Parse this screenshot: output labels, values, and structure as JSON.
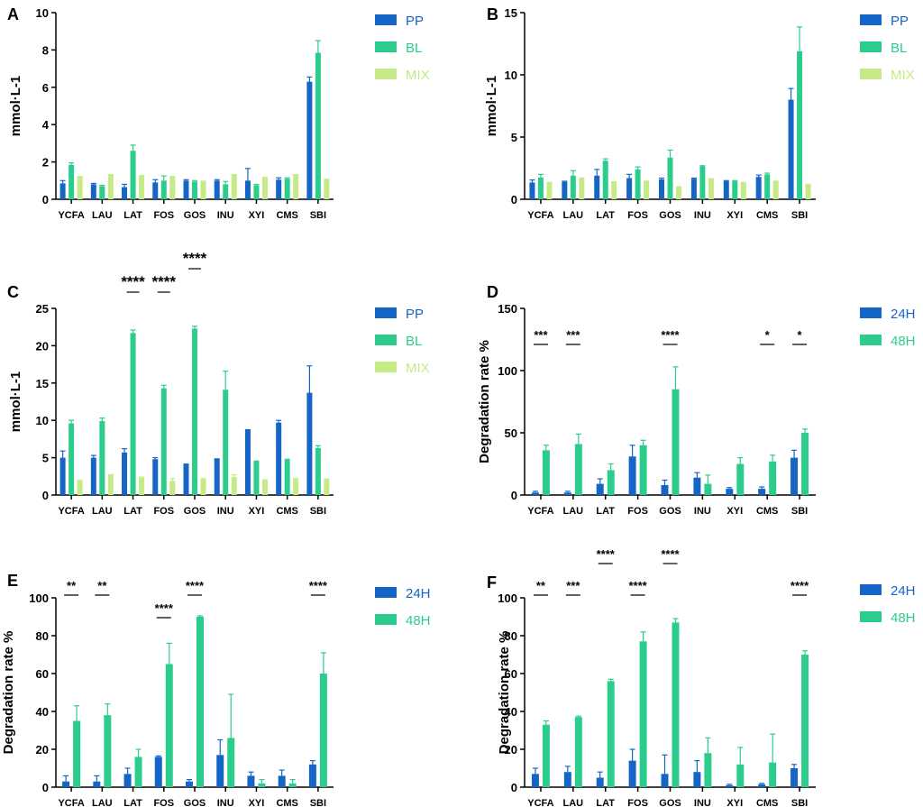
{
  "colors": {
    "PP": "#1565c7",
    "BL": "#2ccd8c",
    "MIX": "#c5ea86",
    "24H": "#1565c7",
    "48H": "#2ccd8c"
  },
  "chart_data": [
    {
      "panel": "A",
      "type": "bar",
      "ylabel": "mmol·L-1",
      "ylim": [
        0,
        10
      ],
      "yticks": [
        0,
        2,
        4,
        6,
        8,
        10
      ],
      "categories": [
        "YCFA",
        "LAU",
        "LAT",
        "FOS",
        "GOS",
        "INU",
        "XYI",
        "CMS",
        "SBI"
      ],
      "legend": [
        "PP",
        "BL",
        "MIX"
      ],
      "series": [
        {
          "name": "PP",
          "values": [
            0.85,
            0.8,
            0.65,
            0.9,
            1.0,
            1.0,
            1.0,
            1.05,
            6.3
          ],
          "errors": [
            0.15,
            0.05,
            0.15,
            0.15,
            0.05,
            0.05,
            0.65,
            0.1,
            0.25
          ]
        },
        {
          "name": "BL",
          "values": [
            1.85,
            0.7,
            2.6,
            1.0,
            0.95,
            0.8,
            0.75,
            1.1,
            7.85
          ],
          "errors": [
            0.1,
            0.05,
            0.3,
            0.25,
            0.05,
            0.15,
            0.05,
            0.05,
            0.65
          ]
        },
        {
          "name": "MIX",
          "values": [
            1.25,
            1.35,
            1.3,
            1.25,
            1.0,
            1.35,
            1.2,
            1.35,
            1.1
          ],
          "errors": [
            0,
            0,
            0,
            0,
            0,
            0,
            0,
            0,
            0
          ]
        }
      ],
      "significance": []
    },
    {
      "panel": "B",
      "type": "bar",
      "ylabel": "mmol·L-1",
      "ylim": [
        0,
        15
      ],
      "yticks": [
        0,
        5,
        10,
        15
      ],
      "categories": [
        "YCFA",
        "LAU",
        "LAT",
        "FOS",
        "GOS",
        "INU",
        "XYI",
        "CMS",
        "SBI"
      ],
      "legend": [
        "PP",
        "BL",
        "MIX"
      ],
      "series": [
        {
          "name": "PP",
          "values": [
            1.35,
            1.4,
            1.9,
            1.7,
            1.6,
            1.65,
            1.45,
            1.8,
            8.0
          ],
          "errors": [
            0.2,
            0.05,
            0.5,
            0.3,
            0.1,
            0.05,
            0.05,
            0.15,
            0.9
          ]
        },
        {
          "name": "BL",
          "values": [
            1.75,
            1.9,
            3.1,
            2.4,
            3.35,
            2.65,
            1.45,
            2.0,
            11.9
          ],
          "errors": [
            0.25,
            0.4,
            0.15,
            0.2,
            0.6,
            0.05,
            0.05,
            0.1,
            1.95
          ]
        },
        {
          "name": "MIX",
          "values": [
            1.4,
            1.75,
            1.45,
            1.5,
            1.05,
            1.7,
            1.4,
            1.5,
            1.25
          ],
          "errors": [
            0,
            0,
            0,
            0,
            0,
            0,
            0,
            0,
            0
          ]
        }
      ],
      "significance": []
    },
    {
      "panel": "C",
      "type": "bar",
      "ylabel": "mmol·L-1",
      "ylim": [
        0,
        25
      ],
      "yticks": [
        0,
        5,
        10,
        15,
        20,
        25
      ],
      "categories": [
        "YCFA",
        "LAU",
        "LAT",
        "FOS",
        "GOS",
        "INU",
        "XYI",
        "CMS",
        "SBI"
      ],
      "legend": [
        "PP",
        "BL",
        "MIX"
      ],
      "series": [
        {
          "name": "PP",
          "values": [
            5.0,
            5.0,
            5.7,
            4.8,
            4.1,
            4.8,
            8.7,
            9.7,
            13.7
          ],
          "errors": [
            0.9,
            0.3,
            0.5,
            0.2,
            0.05,
            0.05,
            0.05,
            0.3,
            3.6
          ]
        },
        {
          "name": "BL",
          "values": [
            9.6,
            9.9,
            21.7,
            14.3,
            22.3,
            14.1,
            4.5,
            4.7,
            6.3
          ],
          "errors": [
            0.4,
            0.4,
            0.4,
            0.4,
            0.3,
            2.5,
            0.05,
            0.1,
            0.3
          ]
        },
        {
          "name": "MIX",
          "values": [
            1.9,
            2.8,
            2.3,
            1.9,
            2.1,
            2.4,
            2.0,
            2.1,
            2.1
          ],
          "errors": [
            0.1,
            0,
            0.1,
            0.3,
            0.1,
            0.3,
            0.05,
            0.1,
            0.05
          ]
        }
      ],
      "significance": [
        {
          "label": "****",
          "from": 2,
          "to": 2
        },
        {
          "label": "****",
          "from": 3,
          "to": 3
        },
        {
          "label": "****",
          "from": 4,
          "to": 4
        }
      ]
    },
    {
      "panel": "D",
      "type": "bar",
      "ylabel": "Degradation rate %",
      "ylim": [
        0,
        150
      ],
      "yticks": [
        0,
        50,
        100,
        150
      ],
      "categories": [
        "YCFA",
        "LAU",
        "LAT",
        "FOS",
        "GOS",
        "INU",
        "XYI",
        "CMS",
        "SBI"
      ],
      "legend": [
        "24H",
        "48H"
      ],
      "series": [
        {
          "name": "24H",
          "values": [
            2,
            2,
            9,
            31,
            8,
            14,
            5,
            5,
            30
          ],
          "errors": [
            1,
            1,
            4,
            9,
            4,
            4,
            1,
            1.5,
            6
          ]
        },
        {
          "name": "48H",
          "values": [
            36,
            41,
            20,
            40,
            85,
            9,
            25,
            27,
            50
          ],
          "errors": [
            4,
            8,
            5,
            4,
            18,
            7,
            5,
            5,
            3
          ]
        }
      ],
      "significance": [
        {
          "label": "***",
          "from": 0,
          "to": 0
        },
        {
          "label": "***",
          "from": 1,
          "to": 1
        },
        {
          "label": "****",
          "from": 4,
          "to": 4
        },
        {
          "label": "*",
          "from": 7,
          "to": 7
        },
        {
          "label": "*",
          "from": 8,
          "to": 8
        }
      ]
    },
    {
      "panel": "E",
      "type": "bar",
      "ylabel": "Degradation rate %",
      "ylim": [
        0,
        100
      ],
      "yticks": [
        0,
        20,
        40,
        60,
        80,
        100
      ],
      "categories": [
        "YCFA",
        "LAU",
        "LAT",
        "FOS",
        "GOS",
        "INU",
        "XYI",
        "CMS",
        "SBI"
      ],
      "legend": [
        "24H",
        "48H"
      ],
      "series": [
        {
          "name": "24H",
          "values": [
            3,
            3,
            7,
            16,
            3,
            17,
            6,
            6,
            12
          ],
          "errors": [
            3,
            3,
            3,
            0.5,
            1,
            8,
            2,
            3,
            2
          ]
        },
        {
          "name": "48H",
          "values": [
            35,
            38,
            16,
            65,
            90,
            26,
            2,
            2,
            60
          ],
          "errors": [
            8,
            6,
            4,
            11,
            0.5,
            23,
            2,
            2,
            11
          ]
        }
      ],
      "significance": [
        {
          "label": "**",
          "from": 0,
          "to": 0
        },
        {
          "label": "**",
          "from": 1,
          "to": 1
        },
        {
          "label": "****",
          "from": 3,
          "to": 3
        },
        {
          "label": "****",
          "from": 4,
          "to": 4
        },
        {
          "label": "****",
          "from": 8,
          "to": 8
        }
      ]
    },
    {
      "panel": "F",
      "type": "bar",
      "ylabel": "Degradation rate %",
      "ylim": [
        0,
        100
      ],
      "yticks": [
        0,
        20,
        40,
        60,
        80,
        100
      ],
      "categories": [
        "YCFA",
        "LAU",
        "LAT",
        "FOS",
        "GOS",
        "INU",
        "XYI",
        "CMS",
        "SBI"
      ],
      "legend": [
        "24H",
        "48H"
      ],
      "series": [
        {
          "name": "24H",
          "values": [
            7,
            8,
            5,
            14,
            7,
            8,
            1,
            1.5,
            10
          ],
          "errors": [
            3,
            3,
            3,
            6,
            10,
            6,
            0.5,
            0.5,
            2
          ]
        },
        {
          "name": "48H",
          "values": [
            33,
            37,
            56,
            77,
            87,
            18,
            12,
            13,
            70
          ],
          "errors": [
            2,
            0.5,
            1,
            5,
            2,
            8,
            9,
            15,
            2
          ]
        }
      ],
      "significance": [
        {
          "label": "**",
          "from": 0,
          "to": 0
        },
        {
          "label": "***",
          "from": 1,
          "to": 1
        },
        {
          "label": "****",
          "from": 2,
          "to": 2
        },
        {
          "label": "****",
          "from": 3,
          "to": 3
        },
        {
          "label": "****",
          "from": 4,
          "to": 4
        },
        {
          "label": "****",
          "from": 8,
          "to": 8
        }
      ]
    }
  ]
}
